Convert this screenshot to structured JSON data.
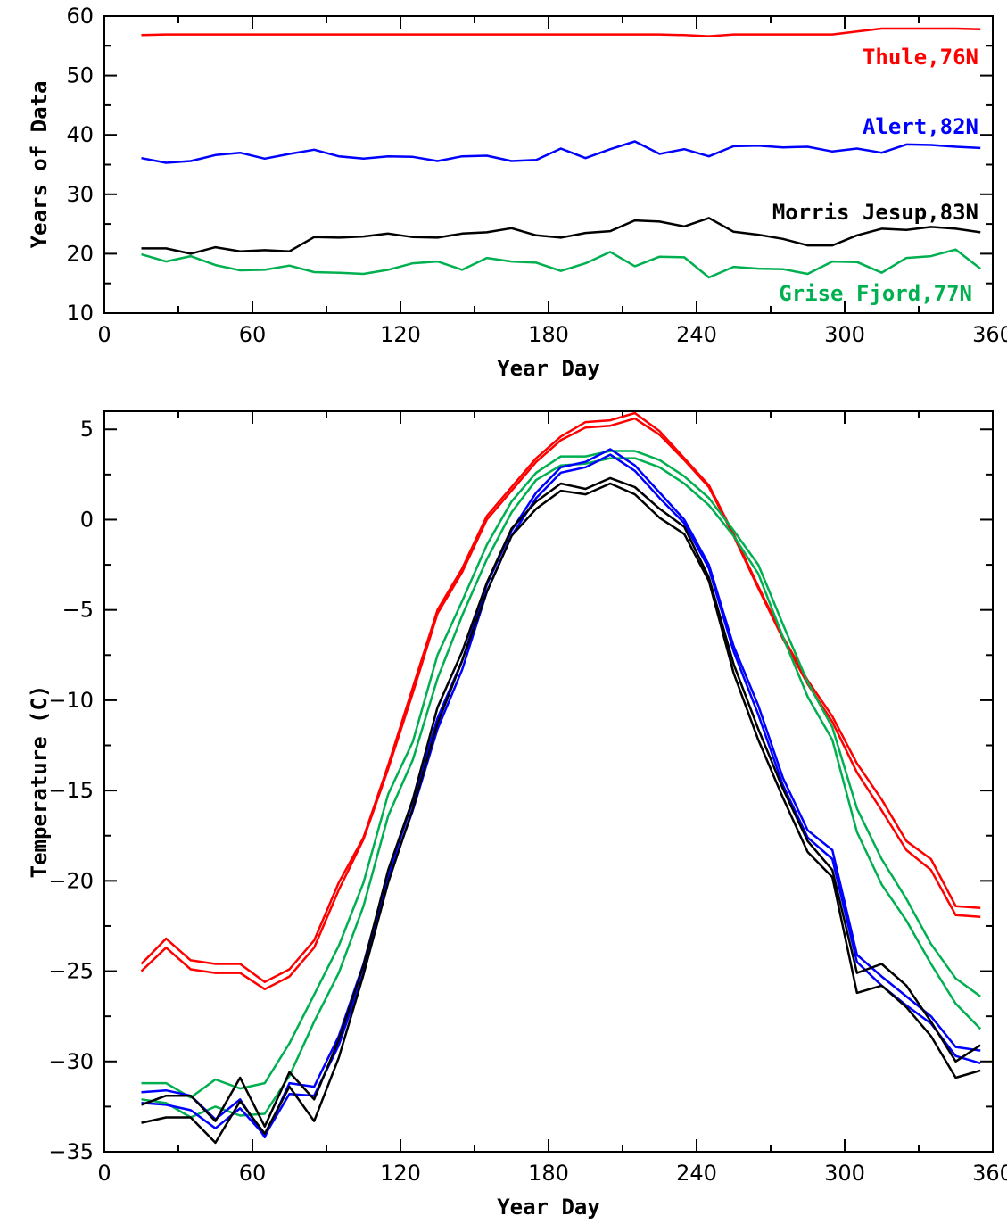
{
  "colors": {
    "thule": "#ff0000",
    "alert": "#0000ff",
    "morris_jesup": "#000000",
    "grise_fjord": "#00b050"
  },
  "chart_data": [
    {
      "type": "line",
      "xlabel": "Year Day",
      "ylabel": "Years of Data",
      "xlim": [
        0,
        360
      ],
      "ylim": [
        10,
        60
      ],
      "xticks": [
        0,
        60,
        120,
        180,
        240,
        300,
        360
      ],
      "yticks": [
        10,
        20,
        30,
        40,
        50,
        60
      ],
      "x": [
        15,
        25,
        35,
        45,
        55,
        65,
        75,
        85,
        95,
        105,
        115,
        125,
        135,
        145,
        155,
        165,
        175,
        185,
        195,
        205,
        215,
        225,
        235,
        245,
        255,
        265,
        275,
        285,
        295,
        305,
        315,
        325,
        335,
        345,
        355
      ],
      "series": [
        {
          "name": "Thule,76N",
          "color_key": "thule",
          "values": [
            56.8,
            56.9,
            56.9,
            56.9,
            56.9,
            56.9,
            56.9,
            56.9,
            56.9,
            56.9,
            56.9,
            56.9,
            56.9,
            56.9,
            56.9,
            56.9,
            56.9,
            56.9,
            56.9,
            56.9,
            56.9,
            56.9,
            56.8,
            56.6,
            56.9,
            56.9,
            56.9,
            56.9,
            56.9,
            57.4,
            57.9,
            57.9,
            57.9,
            57.9,
            57.8
          ]
        },
        {
          "name": "Alert,82N",
          "color_key": "alert",
          "values": [
            36.1,
            35.3,
            35.6,
            36.6,
            37.0,
            36.0,
            36.8,
            37.5,
            36.4,
            36.0,
            36.4,
            36.3,
            35.6,
            36.4,
            36.5,
            35.6,
            35.8,
            37.7,
            36.1,
            37.6,
            38.9,
            36.8,
            37.6,
            36.4,
            38.1,
            38.2,
            37.9,
            38.0,
            37.2,
            37.7,
            37.0,
            38.4,
            38.3,
            38.0,
            37.8
          ]
        },
        {
          "name": "Morris Jesup,83N",
          "color_key": "morris_jesup",
          "values": [
            20.9,
            20.9,
            20.0,
            21.1,
            20.4,
            20.6,
            20.4,
            22.8,
            22.7,
            22.9,
            23.4,
            22.8,
            22.7,
            23.4,
            23.6,
            24.3,
            23.1,
            22.7,
            23.5,
            23.8,
            25.6,
            25.4,
            24.6,
            26.0,
            23.7,
            23.2,
            22.5,
            21.4,
            21.4,
            23.1,
            24.2,
            24.0,
            24.5,
            24.2,
            23.6
          ]
        },
        {
          "name": "Grise Fjord,77N",
          "color_key": "grise_fjord",
          "values": [
            19.9,
            18.7,
            19.6,
            18.1,
            17.2,
            17.3,
            18.0,
            16.9,
            16.8,
            16.6,
            17.3,
            18.4,
            18.7,
            17.3,
            19.3,
            18.7,
            18.5,
            17.1,
            18.4,
            20.3,
            17.9,
            19.5,
            19.4,
            16.0,
            17.8,
            17.5,
            17.4,
            16.6,
            18.7,
            18.6,
            16.8,
            19.3,
            19.6,
            20.7,
            17.5
          ]
        }
      ]
    },
    {
      "type": "line",
      "xlabel": "Year Day",
      "ylabel": "Temperature (C)",
      "xlim": [
        0,
        360
      ],
      "ylim": [
        -35,
        6
      ],
      "xticks": [
        0,
        60,
        120,
        180,
        240,
        300,
        360
      ],
      "yticks": [
        -35,
        -30,
        -25,
        -20,
        -15,
        -10,
        -5,
        0,
        5
      ],
      "x": [
        15,
        25,
        35,
        45,
        55,
        65,
        75,
        85,
        95,
        105,
        115,
        125,
        135,
        145,
        155,
        165,
        175,
        185,
        195,
        205,
        215,
        225,
        235,
        245,
        255,
        265,
        275,
        285,
        295,
        305,
        315,
        325,
        335,
        345,
        355
      ],
      "series": [
        {
          "color_key": "thule",
          "values": [
            -24.6,
            -23.2,
            -24.4,
            -24.6,
            -24.6,
            -25.6,
            -24.9,
            -23.3,
            -20.1,
            -17.6,
            -13.6,
            -9.3,
            -5.0,
            -2.7,
            0.2,
            1.8,
            3.4,
            4.6,
            5.4,
            5.5,
            5.9,
            4.9,
            3.4,
            1.9,
            -0.8,
            -3.7,
            -6.5,
            -8.9,
            -10.9,
            -13.5,
            -15.5,
            -17.8,
            -18.8,
            -21.4,
            -21.5
          ]
        },
        {
          "color_key": "thule",
          "values": [
            -25.0,
            -23.7,
            -24.9,
            -25.1,
            -25.1,
            -26.0,
            -25.3,
            -23.7,
            -20.5,
            -17.7,
            -13.8,
            -9.6,
            -5.2,
            -2.9,
            0.0,
            1.6,
            3.2,
            4.4,
            5.1,
            5.2,
            5.6,
            4.7,
            3.3,
            1.8,
            -0.9,
            -3.8,
            -6.6,
            -9.1,
            -11.2,
            -14.0,
            -16.1,
            -18.3,
            -19.4,
            -21.9,
            -22.0
          ]
        },
        {
          "color_key": "grise_fjord",
          "values": [
            -31.2,
            -31.2,
            -32.0,
            -31.0,
            -31.5,
            -31.2,
            -29.0,
            -26.3,
            -23.6,
            -20.1,
            -15.2,
            -12.3,
            -7.5,
            -4.5,
            -1.4,
            1.0,
            2.6,
            3.5,
            3.5,
            3.8,
            3.8,
            3.3,
            2.4,
            1.2,
            -0.6,
            -2.5,
            -5.8,
            -9.0,
            -11.5,
            -16.0,
            -18.8,
            -21.0,
            -23.5,
            -25.4,
            -26.4
          ]
        },
        {
          "color_key": "grise_fjord",
          "values": [
            -32.1,
            -32.3,
            -33.1,
            -32.5,
            -33.0,
            -32.9,
            -30.8,
            -27.8,
            -25.1,
            -21.4,
            -16.4,
            -13.3,
            -8.8,
            -5.3,
            -2.2,
            0.4,
            2.2,
            3.0,
            3.1,
            3.4,
            3.4,
            2.9,
            2.0,
            0.8,
            -0.9,
            -3.0,
            -6.5,
            -9.8,
            -12.2,
            -17.3,
            -20.2,
            -22.2,
            -24.6,
            -26.8,
            -28.2
          ]
        },
        {
          "color_key": "alert",
          "values": [
            -31.7,
            -31.6,
            -31.9,
            -33.2,
            -32.1,
            -34.2,
            -31.2,
            -31.4,
            -28.6,
            -24.6,
            -19.6,
            -15.6,
            -11.0,
            -7.8,
            -3.6,
            -0.6,
            1.5,
            2.9,
            3.2,
            3.9,
            3.0,
            1.5,
            0.0,
            -2.5,
            -7.0,
            -10.3,
            -14.3,
            -17.2,
            -18.3,
            -24.1,
            -25.3,
            -26.4,
            -27.5,
            -29.2,
            -29.4
          ]
        },
        {
          "color_key": "alert",
          "values": [
            -32.3,
            -32.4,
            -32.7,
            -33.7,
            -32.6,
            -34.1,
            -31.8,
            -31.9,
            -29.1,
            -25.1,
            -19.9,
            -16.1,
            -11.6,
            -8.3,
            -4.0,
            -0.9,
            1.2,
            2.6,
            2.9,
            3.6,
            2.7,
            1.2,
            -0.2,
            -2.7,
            -7.3,
            -10.8,
            -14.7,
            -17.6,
            -18.8,
            -24.5,
            -25.8,
            -26.9,
            -27.9,
            -29.7,
            -30.1
          ]
        },
        {
          "color_key": "morris_jesup",
          "values": [
            -32.4,
            -31.9,
            -31.9,
            -33.3,
            -30.9,
            -33.6,
            -30.6,
            -32.1,
            -28.8,
            -24.7,
            -19.4,
            -15.5,
            -10.4,
            -7.3,
            -3.5,
            -0.5,
            1.0,
            2.0,
            1.7,
            2.3,
            1.8,
            0.6,
            -0.4,
            -3.2,
            -8.0,
            -11.6,
            -14.9,
            -17.8,
            -19.4,
            -25.1,
            -24.6,
            -25.8,
            -27.8,
            -30.0,
            -29.1
          ]
        },
        {
          "color_key": "morris_jesup",
          "values": [
            -33.4,
            -33.1,
            -33.1,
            -34.5,
            -32.2,
            -34.0,
            -31.4,
            -33.3,
            -29.8,
            -25.2,
            -20.1,
            -16.0,
            -11.3,
            -7.8,
            -4.0,
            -0.9,
            0.6,
            1.6,
            1.4,
            2.0,
            1.4,
            0.1,
            -0.8,
            -3.4,
            -8.5,
            -12.2,
            -15.4,
            -18.4,
            -19.8,
            -26.2,
            -25.8,
            -27.0,
            -28.6,
            -30.9,
            -30.5
          ]
        }
      ]
    }
  ]
}
